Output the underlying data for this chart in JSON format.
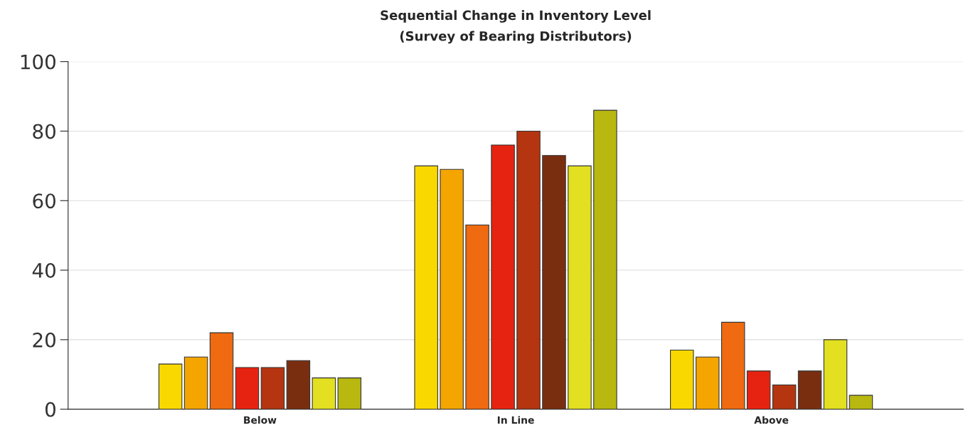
{
  "chart_data": {
    "type": "bar",
    "title": "Sequential Change in Inventory Level",
    "subtitle": "(Survey of Bearing Distributors)",
    "categories": [
      "Below",
      "In Line",
      "Above"
    ],
    "series": [
      {
        "color": "#f9d800",
        "values": [
          13,
          70,
          17
        ]
      },
      {
        "color": "#f5a500",
        "values": [
          15,
          69,
          15
        ]
      },
      {
        "color": "#ef6a10",
        "values": [
          22,
          53,
          25
        ]
      },
      {
        "color": "#e52310",
        "values": [
          12,
          76,
          11
        ]
      },
      {
        "color": "#b53510",
        "values": [
          12,
          80,
          7
        ]
      },
      {
        "color": "#7a2e10",
        "values": [
          14,
          73,
          11
        ]
      },
      {
        "color": "#e2e020",
        "values": [
          9,
          70,
          20
        ]
      },
      {
        "color": "#b8b810",
        "values": [
          9,
          86,
          4
        ]
      }
    ],
    "ylim": [
      0,
      100
    ],
    "yticks": [
      0,
      20,
      40,
      60,
      80,
      100
    ],
    "grid": "y"
  }
}
